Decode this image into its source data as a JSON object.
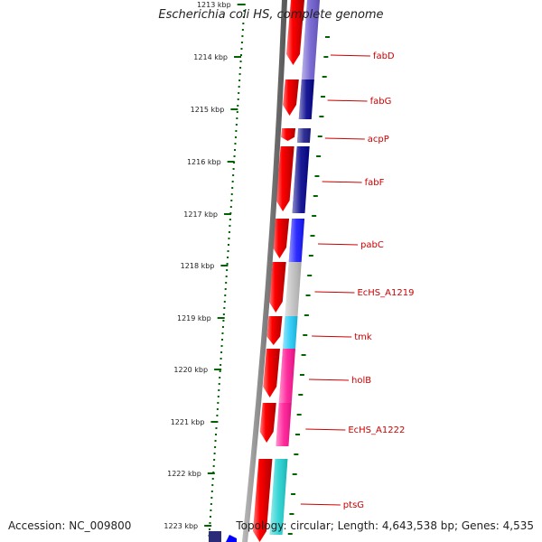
{
  "title": "Escherichia coli HS, complete genome",
  "accession": "Accession: NC_009800",
  "summary": "Topology: circular; Length: 4,643,538 bp; Genes: 4,535",
  "ticks": [
    "1213 kbp",
    "1214 kbp",
    "1215 kbp",
    "1216 kbp",
    "1217 kbp",
    "1218 kbp",
    "1219 kbp",
    "1220 kbp",
    "1221 kbp",
    "1222 kbp",
    "1223 kbp"
  ],
  "genes": [
    {
      "name": "fabD",
      "color": "#6a5acd"
    },
    {
      "name": "fabG",
      "color": "#00008b"
    },
    {
      "name": "acpP",
      "color": "#1a1a8a"
    },
    {
      "name": "fabF",
      "color": "#00008b"
    },
    {
      "name": "pabC",
      "color": "#1414ff"
    },
    {
      "name": "EcHS_A1219",
      "color": "#bdbdbd"
    },
    {
      "name": "tmk",
      "color": "#1ec8f5"
    },
    {
      "name": "holB",
      "color": "#ff1493"
    },
    {
      "name": "EcHS_A1222",
      "color": "#ff1493"
    },
    {
      "name": "ptsG",
      "color": "#20d0d0"
    }
  ],
  "colors": {
    "backbone": "#7a7a7a",
    "forward_strand": "#ff0000",
    "tick": "#006400",
    "label": "#cc0000"
  }
}
